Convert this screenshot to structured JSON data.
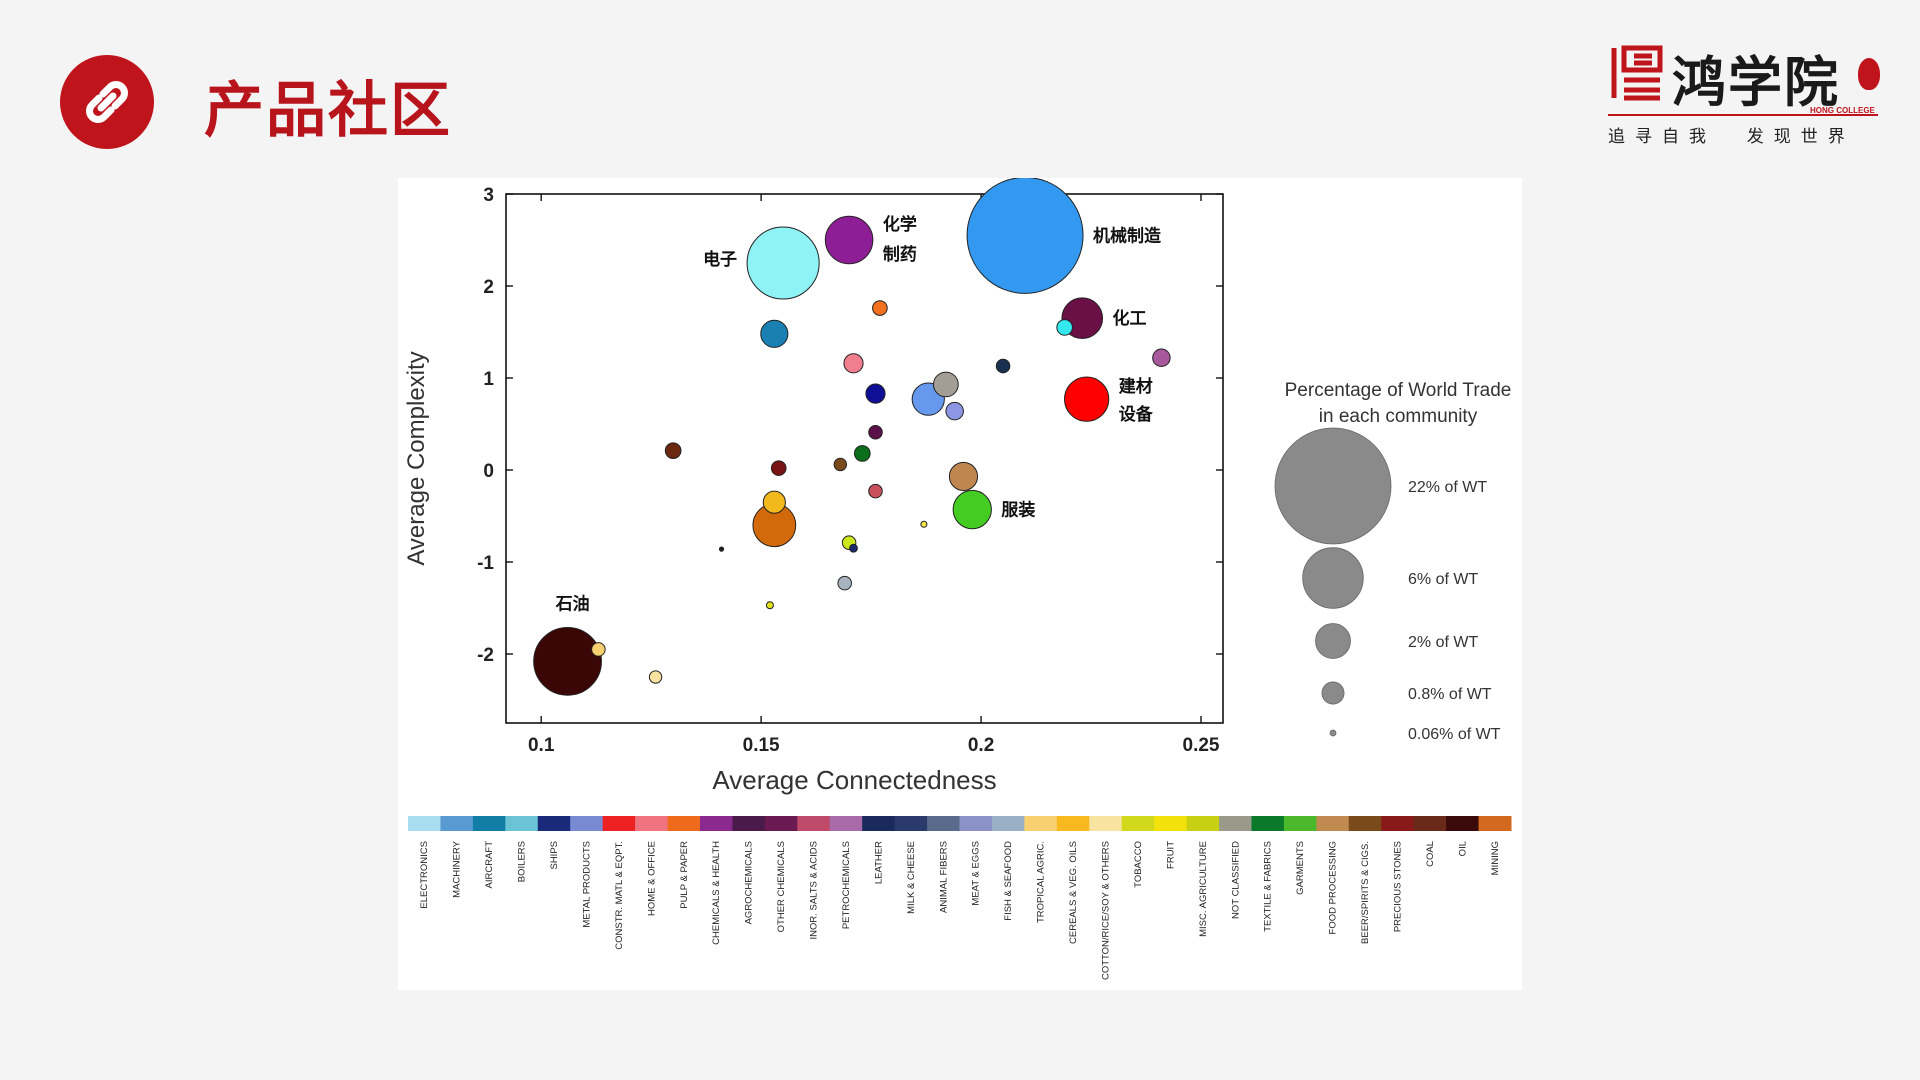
{
  "header": {
    "title": "产品社区",
    "brand_name": "鸿学院",
    "brand_english": "HONG COLLEGE",
    "brand_motto": "追寻自我  发现世界"
  },
  "icons": {
    "title_icon": "link-icon",
    "brand_icon": "brand-logo-icon"
  },
  "colors": {
    "accent": "#c0141c",
    "background": "#f4f4f4",
    "panel": "#ffffff"
  },
  "chart_data": {
    "type": "scatter",
    "xlabel": "Average Connectedness",
    "ylabel": "Average Complexity",
    "xlim": [
      0.092,
      0.255
    ],
    "ylim": [
      -2.75,
      3.0
    ],
    "x_ticks": [
      0.1,
      0.15,
      0.2,
      0.25
    ],
    "x_tick_labels": [
      "0.1",
      "0.15",
      "0.2",
      "0.25"
    ],
    "y_ticks": [
      3,
      2,
      1,
      0,
      -1,
      -2
    ],
    "y_tick_labels": [
      "3",
      "2",
      "1",
      "0",
      "-1",
      "-2"
    ],
    "grid": false,
    "points": [
      {
        "x": 0.21,
        "y": 2.55,
        "share": 22,
        "color": "#3399f0",
        "label": "机械制造"
      },
      {
        "x": 0.155,
        "y": 2.25,
        "share": 8.5,
        "color": "#8ff2f4",
        "label": "电子"
      },
      {
        "x": 0.17,
        "y": 2.5,
        "share": 3.7,
        "color": "#8e1e96",
        "label": "化学\n制药"
      },
      {
        "x": 0.106,
        "y": -2.08,
        "share": 7.5,
        "color": "#3a0606",
        "label": "石油"
      },
      {
        "x": 0.223,
        "y": 1.65,
        "share": 2.7,
        "color": "#6a1046",
        "label": "化工"
      },
      {
        "x": 0.219,
        "y": 1.55,
        "share": 0.4,
        "color": "#33e8ee",
        "label": ""
      },
      {
        "x": 0.224,
        "y": 0.77,
        "share": 3.2,
        "color": "#ff0000",
        "label": "建材\n设备"
      },
      {
        "x": 0.198,
        "y": -0.43,
        "share": 2.4,
        "color": "#44cc22",
        "label": "服装"
      },
      {
        "x": 0.153,
        "y": -0.6,
        "share": 3.0,
        "color": "#d2690a",
        "label": ""
      },
      {
        "x": 0.153,
        "y": -0.35,
        "share": 0.8,
        "color": "#f2b91c",
        "label": ""
      },
      {
        "x": 0.153,
        "y": 1.48,
        "share": 1.2,
        "color": "#1a7fb2",
        "label": ""
      },
      {
        "x": 0.188,
        "y": 0.77,
        "share": 1.7,
        "color": "#6699ee",
        "label": ""
      },
      {
        "x": 0.192,
        "y": 0.93,
        "share": 1.0,
        "color": "#a29e96",
        "label": ""
      },
      {
        "x": 0.194,
        "y": 0.64,
        "share": 0.5,
        "color": "#8c96e2",
        "label": ""
      },
      {
        "x": 0.196,
        "y": -0.07,
        "share": 1.3,
        "color": "#c08650",
        "label": ""
      },
      {
        "x": 0.176,
        "y": 0.83,
        "share": 0.6,
        "color": "#0f0f96",
        "label": ""
      },
      {
        "x": 0.171,
        "y": 1.16,
        "share": 0.6,
        "color": "#f07e8e",
        "label": ""
      },
      {
        "x": 0.177,
        "y": 1.76,
        "share": 0.35,
        "color": "#f0701e",
        "label": ""
      },
      {
        "x": 0.205,
        "y": 1.13,
        "share": 0.3,
        "color": "#1a3050",
        "label": ""
      },
      {
        "x": 0.241,
        "y": 1.22,
        "share": 0.5,
        "color": "#a8589c",
        "label": ""
      },
      {
        "x": 0.176,
        "y": 0.41,
        "share": 0.3,
        "color": "#5a1048",
        "label": ""
      },
      {
        "x": 0.173,
        "y": 0.18,
        "share": 0.4,
        "color": "#0a6e1a",
        "label": ""
      },
      {
        "x": 0.168,
        "y": 0.06,
        "share": 0.25,
        "color": "#7a4a1a",
        "label": ""
      },
      {
        "x": 0.154,
        "y": 0.02,
        "share": 0.35,
        "color": "#7a1414",
        "label": ""
      },
      {
        "x": 0.13,
        "y": 0.21,
        "share": 0.4,
        "color": "#6a2810",
        "label": ""
      },
      {
        "x": 0.176,
        "y": -0.23,
        "share": 0.3,
        "color": "#c8505a",
        "label": ""
      },
      {
        "x": 0.17,
        "y": -0.79,
        "share": 0.3,
        "color": "#cce81c",
        "label": ""
      },
      {
        "x": 0.171,
        "y": -0.85,
        "share": 0.1,
        "color": "#1a2a6a",
        "label": ""
      },
      {
        "x": 0.169,
        "y": -1.23,
        "share": 0.3,
        "color": "#a8b4c0",
        "label": ""
      },
      {
        "x": 0.187,
        "y": -0.59,
        "share": 0.06,
        "color": "#f2e64a",
        "label": ""
      },
      {
        "x": 0.152,
        "y": -1.47,
        "share": 0.08,
        "color": "#e2e01c",
        "label": ""
      },
      {
        "x": 0.141,
        "y": -0.86,
        "share": 0.03,
        "color": "#202020",
        "label": ""
      },
      {
        "x": 0.126,
        "y": -2.25,
        "share": 0.25,
        "color": "#f8e4a0",
        "label": ""
      },
      {
        "x": 0.113,
        "y": -1.95,
        "share": 0.3,
        "color": "#f8d070",
        "label": ""
      }
    ],
    "size_legend": {
      "title": "Percentage of World Trade\nin each community",
      "entries": [
        {
          "share": 22,
          "label": "22% of WT"
        },
        {
          "share": 6,
          "label": "6% of WT"
        },
        {
          "share": 2,
          "label": "2% of WT"
        },
        {
          "share": 0.8,
          "label": "0.8% of WT"
        },
        {
          "share": 0.06,
          "label": "0.06% of WT"
        }
      ],
      "color": "#8a8a8a"
    },
    "color_legend": [
      {
        "label": "ELECTRONICS",
        "color": "#a8dcee"
      },
      {
        "label": "MACHINERY",
        "color": "#5a9ad2"
      },
      {
        "label": "AIRCRAFT",
        "color": "#127ea6"
      },
      {
        "label": "BOILERS",
        "color": "#6ac4d6"
      },
      {
        "label": "SHIPS",
        "color": "#1a2a7a"
      },
      {
        "label": "METAL PRODUCTS",
        "color": "#7a8ad2"
      },
      {
        "label": "CONSTR. MATL & EQPT.",
        "color": "#ee2222"
      },
      {
        "label": "HOME & OFFICE",
        "color": "#f07480"
      },
      {
        "label": "PULP & PAPER",
        "color": "#f06a1e"
      },
      {
        "label": "CHEMICALS & HEALTH",
        "color": "#8a2a8e"
      },
      {
        "label": "AGROCHEMICALS",
        "color": "#4a1a4a"
      },
      {
        "label": "OTHER CHEMICALS",
        "color": "#6a1a50"
      },
      {
        "label": "INOR. SALTS & ACIDS",
        "color": "#c04a6a"
      },
      {
        "label": "PETROCHEMICALS",
        "color": "#a86aa8"
      },
      {
        "label": "LEATHER",
        "color": "#1a2a5a"
      },
      {
        "label": "MILK & CHEESE",
        "color": "#2a3a6a"
      },
      {
        "label": "ANIMAL FIBERS",
        "color": "#5a6a8a"
      },
      {
        "label": "MEAT & EGGS",
        "color": "#8a92c8"
      },
      {
        "label": "FISH & SEAFOOD",
        "color": "#9ab0c4"
      },
      {
        "label": "TROPICAL AGRIC.",
        "color": "#f8d070"
      },
      {
        "label": "CEREALS & VEG. OILS",
        "color": "#f8b820"
      },
      {
        "label": "COTTON/RICE/SOY & OTHERS",
        "color": "#f8e4a0"
      },
      {
        "label": "TOBACCO",
        "color": "#d2d81c"
      },
      {
        "label": "FRUIT",
        "color": "#f2e20a"
      },
      {
        "label": "MISC. AGRICULTURE",
        "color": "#c8d014"
      },
      {
        "label": "NOT CLASSIFIED",
        "color": "#9a9a8a"
      },
      {
        "label": "TEXTILE & FABRICS",
        "color": "#0a7a2a"
      },
      {
        "label": "GARMENTS",
        "color": "#4ab82a"
      },
      {
        "label": "FOOD PROCESSING",
        "color": "#c08a50"
      },
      {
        "label": "BEER/SPIRITS & CIGS.",
        "color": "#7a4a1a"
      },
      {
        "label": "PRECIOUS STONES",
        "color": "#8a1a1a"
      },
      {
        "label": "COAL",
        "color": "#6a2a1a"
      },
      {
        "label": "OIL",
        "color": "#3a0a0a"
      },
      {
        "label": "MINING",
        "color": "#d2691e"
      }
    ]
  }
}
